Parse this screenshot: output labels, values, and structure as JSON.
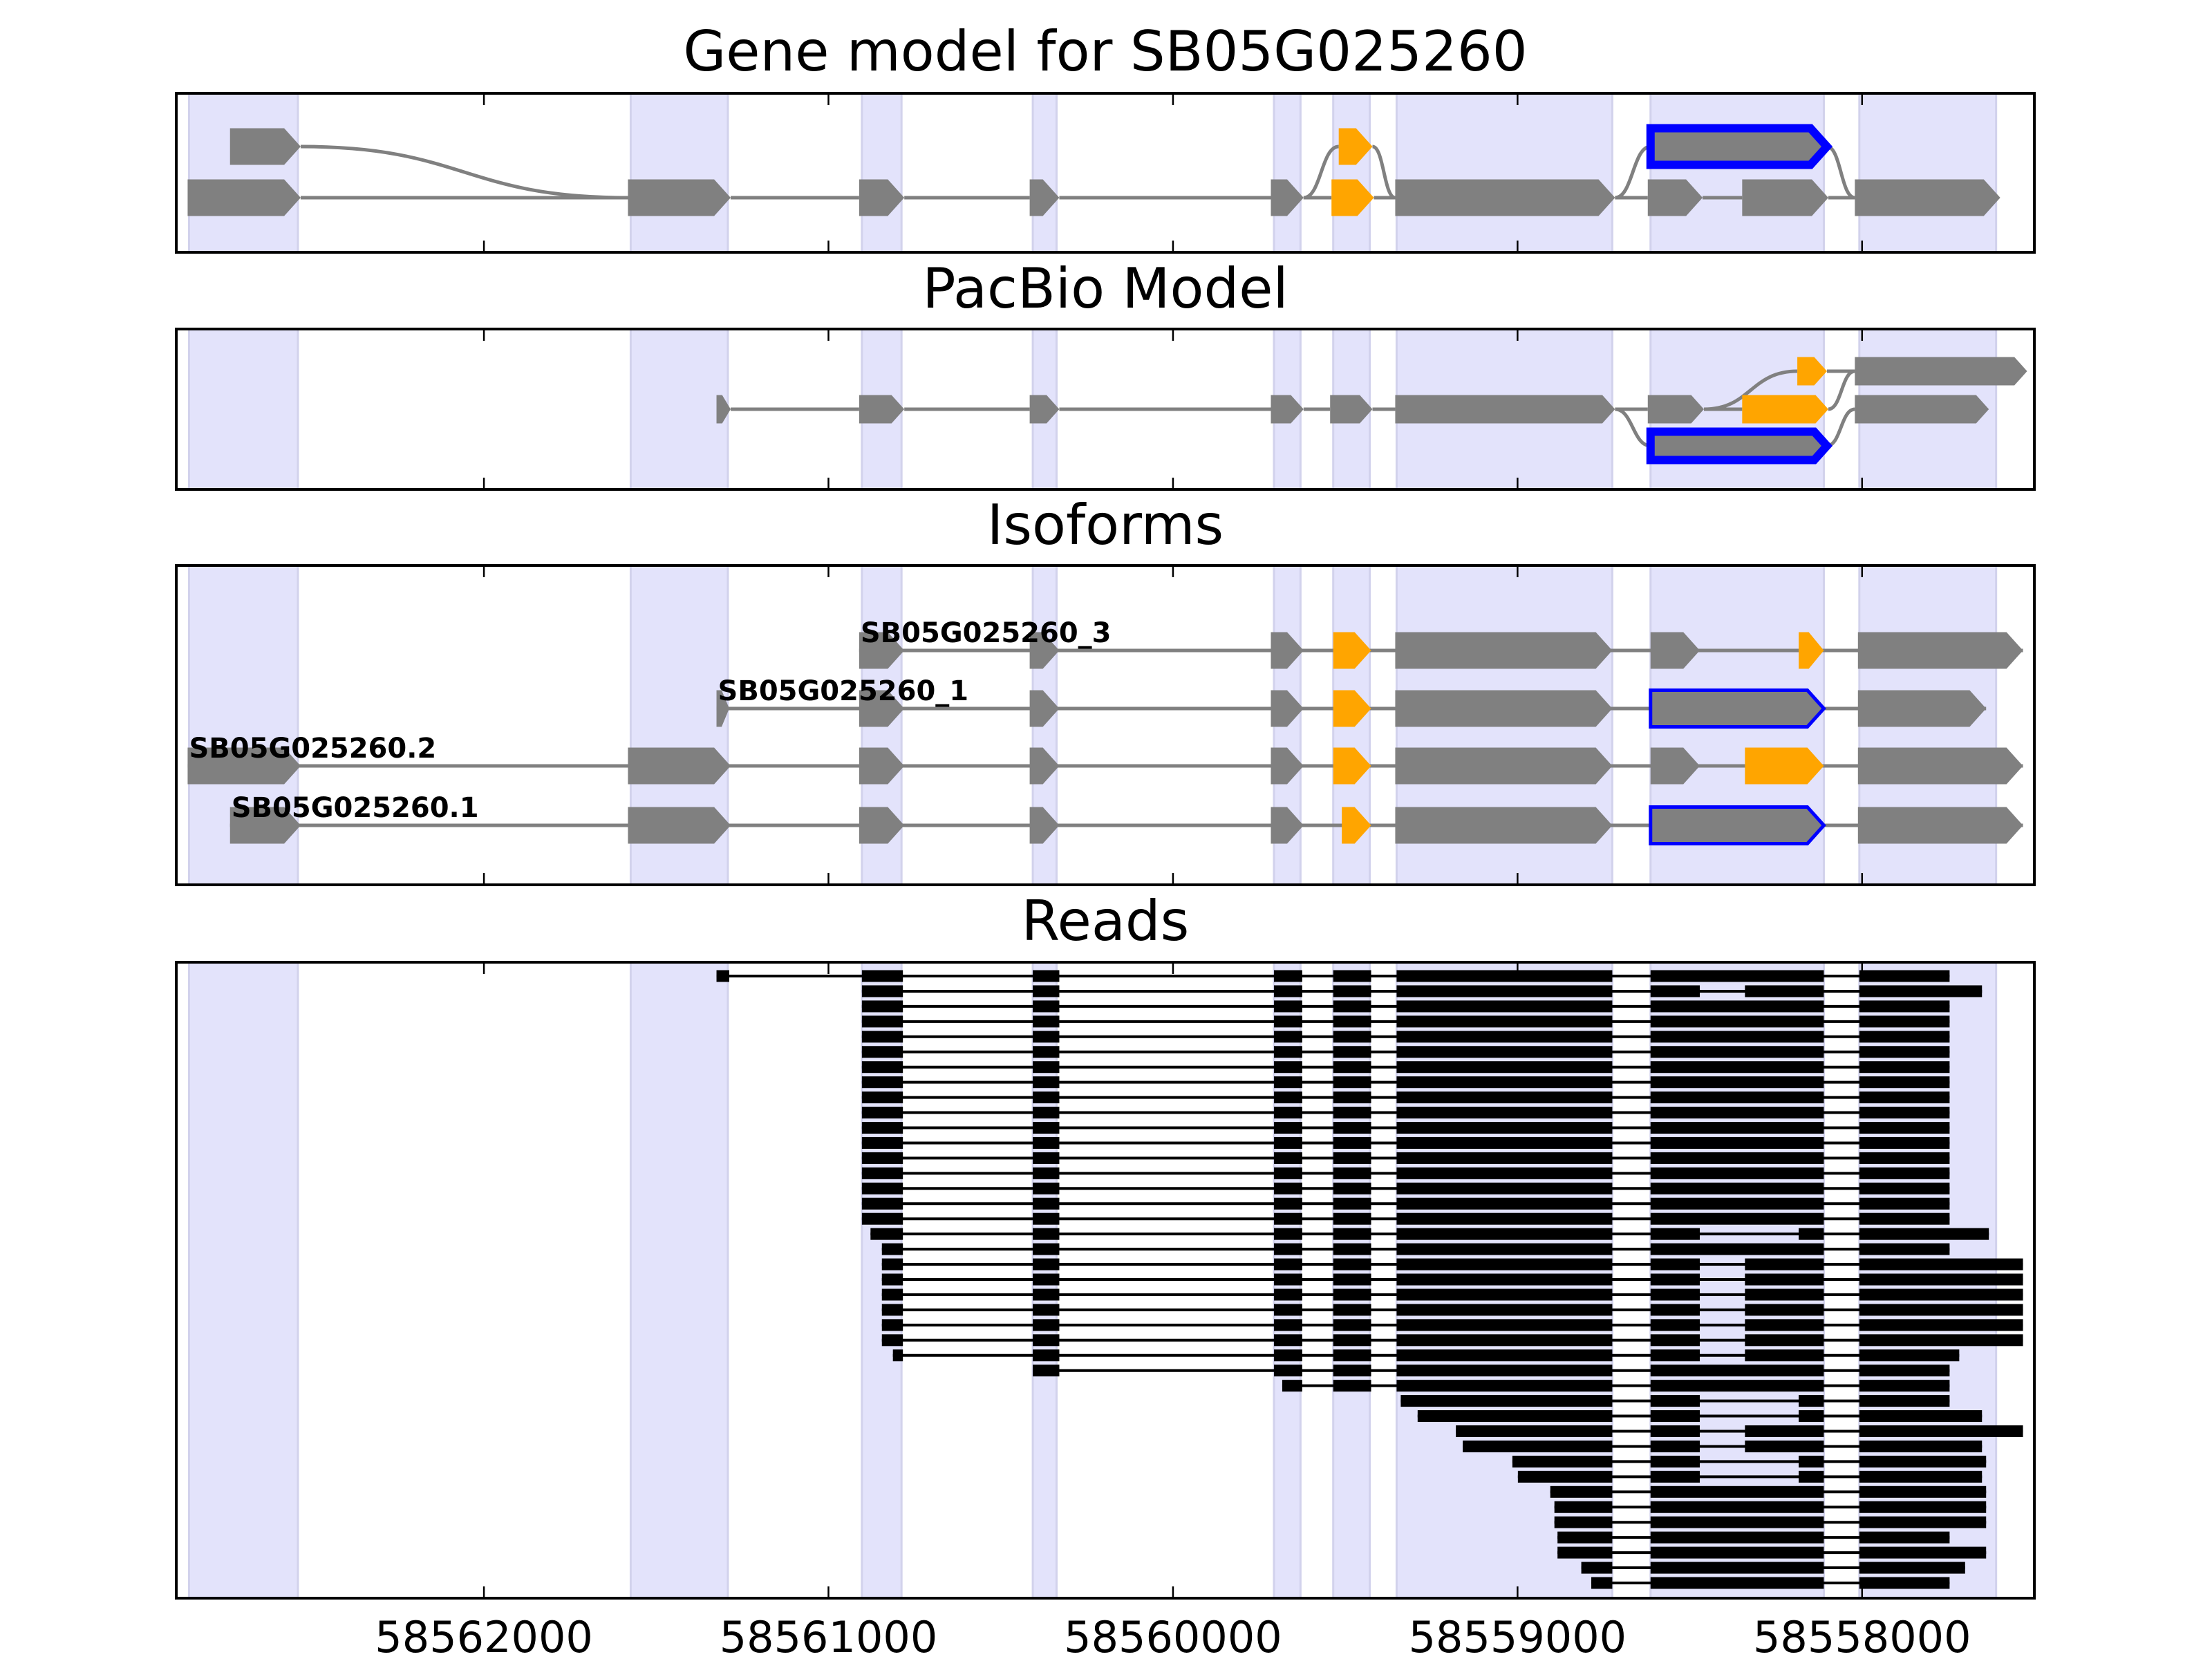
{
  "chart_data": {
    "type": "gene-structure",
    "xlim": [
      58562893,
      58557500
    ],
    "x_ticks": [
      58562000,
      58561000,
      58560000,
      58559000,
      58558000
    ],
    "x_tick_labels": [
      "58562000",
      "58561000",
      "58560000",
      "58559000",
      "58558000"
    ],
    "colors": {
      "g": "#808080",
      "o": "#ffa500",
      "b": "#808080",
      "outline": "#0000ff",
      "shade": "#e3e3fb",
      "read": "#000000",
      "intron": "#808080"
    },
    "shaded_regions": [
      [
        58562856,
        58562540
      ],
      [
        58561574,
        58561292
      ],
      [
        58560903,
        58560788
      ],
      [
        58560407,
        58560338
      ],
      [
        58559707,
        58559630
      ],
      [
        58559535,
        58559429
      ],
      [
        58559351,
        58558725
      ],
      [
        58558614,
        58558111
      ],
      [
        58558008,
        58557611
      ]
    ],
    "gene_model": {
      "title": "Gene model for SB05G025260",
      "rows": 2,
      "exons": [
        [
          58562737,
          58562532,
          "g",
          0
        ],
        [
          58562860,
          58562532,
          "g",
          1
        ],
        [
          58561582,
          58561284,
          "g",
          1
        ],
        [
          58560911,
          58560780,
          "g",
          1
        ],
        [
          58560416,
          58560330,
          "g",
          1
        ],
        [
          58559716,
          58559621,
          "g",
          1
        ],
        [
          58559519,
          58559421,
          "o",
          0
        ],
        [
          58559540,
          58559417,
          "o",
          1
        ],
        [
          58559355,
          58558717,
          "g",
          1
        ],
        [
          58558614,
          58558102,
          "b",
          0
        ],
        [
          58558622,
          58558463,
          "g",
          1
        ],
        [
          58558348,
          58558098,
          "g",
          1
        ],
        [
          58558021,
          58557599,
          "g",
          1
        ]
      ],
      "edges": [
        [
          0,
          2
        ],
        [
          1,
          2
        ],
        [
          2,
          3
        ],
        [
          3,
          4
        ],
        [
          4,
          5
        ],
        [
          5,
          6
        ],
        [
          5,
          7
        ],
        [
          6,
          8
        ],
        [
          7,
          8
        ],
        [
          8,
          9
        ],
        [
          8,
          10
        ],
        [
          10,
          11
        ],
        [
          9,
          12
        ],
        [
          11,
          12
        ]
      ]
    },
    "pacbio_model": {
      "title": "PacBio Model",
      "rows": 3,
      "exons": [
        [
          58561325,
          58561284,
          "g",
          1
        ],
        [
          58560911,
          58560780,
          "g",
          1
        ],
        [
          58560416,
          58560330,
          "g",
          1
        ],
        [
          58559716,
          58559621,
          "g",
          1
        ],
        [
          58559544,
          58559421,
          "g",
          1
        ],
        [
          58559355,
          58558717,
          "g",
          1
        ],
        [
          58558622,
          58558459,
          "g",
          1
        ],
        [
          58558614,
          58558102,
          "b",
          2
        ],
        [
          58558348,
          58558098,
          "o",
          1
        ],
        [
          58558188,
          58558102,
          "o",
          0
        ],
        [
          58558021,
          58557521,
          "g",
          0
        ],
        [
          58558021,
          58557632,
          "g",
          1
        ]
      ],
      "edges": [
        [
          0,
          1
        ],
        [
          1,
          2
        ],
        [
          2,
          3
        ],
        [
          3,
          4
        ],
        [
          4,
          5
        ],
        [
          5,
          6
        ],
        [
          5,
          7
        ],
        [
          6,
          8
        ],
        [
          6,
          9
        ],
        [
          9,
          10
        ],
        [
          8,
          10
        ],
        [
          7,
          11
        ]
      ]
    },
    "isoforms": {
      "title": "Isoforms",
      "transcripts": [
        {
          "label": "SB05G025260_3",
          "exons": [
            [
              58560911,
              58560780,
              "g"
            ],
            [
              58560416,
              58560330,
              "g"
            ],
            [
              58559716,
              58559621,
              "g"
            ],
            [
              58559535,
              58559425,
              "o"
            ],
            [
              58559355,
              58558725,
              "g"
            ],
            [
              58558614,
              58558471,
              "g"
            ],
            [
              58558184,
              58558111,
              "o"
            ],
            [
              58558012,
              58557533,
              "g"
            ]
          ]
        },
        {
          "label": "SB05G025260_1",
          "exons": [
            [
              58561325,
              58561288,
              "g"
            ],
            [
              58560911,
              58560780,
              "g"
            ],
            [
              58560416,
              58560330,
              "g"
            ],
            [
              58559716,
              58559621,
              "g"
            ],
            [
              58559535,
              58559425,
              "o"
            ],
            [
              58559355,
              58558725,
              "g"
            ],
            [
              58558614,
              58558111,
              "b"
            ],
            [
              58558012,
              58557640,
              "g"
            ]
          ]
        },
        {
          "label": "SB05G025260.2",
          "exons": [
            [
              58562860,
              58562532,
              "g"
            ],
            [
              58561582,
              58561284,
              "g"
            ],
            [
              58560911,
              58560780,
              "g"
            ],
            [
              58560416,
              58560330,
              "g"
            ],
            [
              58559716,
              58559621,
              "g"
            ],
            [
              58559535,
              58559425,
              "o"
            ],
            [
              58559355,
              58558725,
              "g"
            ],
            [
              58558614,
              58558471,
              "g"
            ],
            [
              58558340,
              58558111,
              "o"
            ],
            [
              58558012,
              58557533,
              "g"
            ]
          ]
        },
        {
          "label": "SB05G025260.1",
          "exons": [
            [
              58562737,
              58562532,
              "g"
            ],
            [
              58561582,
              58561284,
              "g"
            ],
            [
              58560911,
              58560780,
              "g"
            ],
            [
              58560416,
              58560330,
              "g"
            ],
            [
              58559716,
              58559621,
              "g"
            ],
            [
              58559510,
              58559425,
              "o"
            ],
            [
              58559355,
              58558725,
              "g"
            ],
            [
              58558614,
              58558111,
              "b"
            ],
            [
              58558012,
              58557533,
              "g"
            ]
          ]
        }
      ]
    },
    "reads": {
      "title": "Reads",
      "exon_blocks": {
        "E0": [
          58561325,
          58561288
        ],
        "E1": [
          58560903,
          58560784
        ],
        "E2": [
          58560407,
          58560330
        ],
        "E3": [
          58559707,
          58559625
        ],
        "E4": [
          58559535,
          58559425
        ],
        "E5": [
          58559351,
          58558725
        ],
        "E6": [
          58558614,
          58558111
        ],
        "E6a": [
          58558614,
          58558471
        ],
        "E6b": [
          58558340,
          58558111
        ],
        "E6c": [
          58558184,
          58558111
        ],
        "E7": [
          58558008,
          58557746
        ]
      },
      "items": [
        {
          "start": 58561325,
          "end": 58557746,
          "blocks": [
            "E0",
            "E1",
            "E2",
            "E3",
            "E4",
            "E5",
            "E6",
            "E7"
          ]
        },
        {
          "start": 58560903,
          "end": 58557652,
          "blocks": [
            "E1",
            "E2",
            "E3",
            "E4",
            "E5",
            "E6a",
            "E6b",
            "E7"
          ]
        },
        {
          "start": 58560903,
          "end": 58557746,
          "blocks": [
            "E1",
            "E2",
            "E3",
            "E4",
            "E5",
            "E6",
            "E7"
          ]
        },
        {
          "start": 58560903,
          "end": 58557746,
          "blocks": [
            "E1",
            "E2",
            "E3",
            "E4",
            "E5",
            "E6",
            "E7"
          ]
        },
        {
          "start": 58560903,
          "end": 58557746,
          "blocks": [
            "E1",
            "E2",
            "E3",
            "E4",
            "E5",
            "E6",
            "E7"
          ]
        },
        {
          "start": 58560903,
          "end": 58557746,
          "blocks": [
            "E1",
            "E2",
            "E3",
            "E4",
            "E5",
            "E6",
            "E7"
          ]
        },
        {
          "start": 58560903,
          "end": 58557746,
          "blocks": [
            "E1",
            "E2",
            "E3",
            "E4",
            "E5",
            "E6",
            "E7"
          ]
        },
        {
          "start": 58560903,
          "end": 58557746,
          "blocks": [
            "E1",
            "E2",
            "E3",
            "E4",
            "E5",
            "E6",
            "E7"
          ]
        },
        {
          "start": 58560903,
          "end": 58557746,
          "blocks": [
            "E1",
            "E2",
            "E3",
            "E4",
            "E5",
            "E6",
            "E7"
          ]
        },
        {
          "start": 58560903,
          "end": 58557746,
          "blocks": [
            "E1",
            "E2",
            "E3",
            "E4",
            "E5",
            "E6",
            "E7"
          ]
        },
        {
          "start": 58560903,
          "end": 58557746,
          "blocks": [
            "E1",
            "E2",
            "E3",
            "E4",
            "E5",
            "E6",
            "E7"
          ]
        },
        {
          "start": 58560903,
          "end": 58557746,
          "blocks": [
            "E1",
            "E2",
            "E3",
            "E4",
            "E5",
            "E6",
            "E7"
          ]
        },
        {
          "start": 58560903,
          "end": 58557746,
          "blocks": [
            "E1",
            "E2",
            "E3",
            "E4",
            "E5",
            "E6",
            "E7"
          ]
        },
        {
          "start": 58560903,
          "end": 58557746,
          "blocks": [
            "E1",
            "E2",
            "E3",
            "E4",
            "E5",
            "E6",
            "E7"
          ]
        },
        {
          "start": 58560903,
          "end": 58557746,
          "blocks": [
            "E1",
            "E2",
            "E3",
            "E4",
            "E5",
            "E6",
            "E7"
          ]
        },
        {
          "start": 58560903,
          "end": 58557746,
          "blocks": [
            "E1",
            "E2",
            "E3",
            "E4",
            "E5",
            "E6",
            "E7"
          ]
        },
        {
          "start": 58560903,
          "end": 58557746,
          "blocks": [
            "E1",
            "E2",
            "E3",
            "E4",
            "E5",
            "E6",
            "E7"
          ]
        },
        {
          "start": 58560878,
          "end": 58557632,
          "blocks": [
            "E1",
            "E2",
            "E3",
            "E4",
            "E5",
            "E6a",
            "E6c",
            "E7"
          ]
        },
        {
          "start": 58560845,
          "end": 58557746,
          "blocks": [
            "E1",
            "E2",
            "E3",
            "E4",
            "E5",
            "E6",
            "E7"
          ]
        },
        {
          "start": 58560845,
          "end": 58557533,
          "blocks": [
            "E1",
            "E2",
            "E3",
            "E4",
            "E5",
            "E6a",
            "E6b",
            "E7"
          ]
        },
        {
          "start": 58560845,
          "end": 58557533,
          "blocks": [
            "E1",
            "E2",
            "E3",
            "E4",
            "E5",
            "E6a",
            "E6b",
            "E7"
          ]
        },
        {
          "start": 58560845,
          "end": 58557533,
          "blocks": [
            "E1",
            "E2",
            "E3",
            "E4",
            "E5",
            "E6a",
            "E6b",
            "E7"
          ]
        },
        {
          "start": 58560845,
          "end": 58557533,
          "blocks": [
            "E1",
            "E2",
            "E3",
            "E4",
            "E5",
            "E6a",
            "E6b",
            "E7"
          ]
        },
        {
          "start": 58560845,
          "end": 58557533,
          "blocks": [
            "E1",
            "E2",
            "E3",
            "E4",
            "E5",
            "E6a",
            "E6b",
            "E7"
          ]
        },
        {
          "start": 58560845,
          "end": 58557533,
          "blocks": [
            "E1",
            "E2",
            "E3",
            "E4",
            "E5",
            "E6a",
            "E6b",
            "E7"
          ]
        },
        {
          "start": 58560813,
          "end": 58557718,
          "blocks": [
            "E1",
            "E2",
            "E3",
            "E4",
            "E5",
            "E6a",
            "E6b",
            "E7"
          ]
        },
        {
          "start": 58560407,
          "end": 58557746,
          "blocks": [
            "E2",
            "E3",
            "E4",
            "E5",
            "E6",
            "E7"
          ]
        },
        {
          "start": 58559683,
          "end": 58557746,
          "blocks": [
            "E3",
            "E4",
            "E5",
            "E6",
            "E7"
          ]
        },
        {
          "start": 58559339,
          "end": 58557746,
          "blocks": [
            "E5",
            "E6a",
            "E6c",
            "E7"
          ]
        },
        {
          "start": 58559290,
          "end": 58557652,
          "blocks": [
            "E5",
            "E6a",
            "E6c",
            "E7"
          ]
        },
        {
          "start": 58559179,
          "end": 58557533,
          "blocks": [
            "E5",
            "E6a",
            "E6b",
            "E7"
          ]
        },
        {
          "start": 58559159,
          "end": 58557652,
          "blocks": [
            "E5",
            "E6a",
            "E6b",
            "E7"
          ]
        },
        {
          "start": 58559015,
          "end": 58557640,
          "blocks": [
            "E5",
            "E6a",
            "E6c",
            "E7"
          ]
        },
        {
          "start": 58558999,
          "end": 58557652,
          "blocks": [
            "E5",
            "E6a",
            "E6c",
            "E7"
          ]
        },
        {
          "start": 58558905,
          "end": 58557640,
          "blocks": [
            "E5",
            "E6",
            "E7"
          ]
        },
        {
          "start": 58558893,
          "end": 58557640,
          "blocks": [
            "E5",
            "E6",
            "E7"
          ]
        },
        {
          "start": 58558893,
          "end": 58557640,
          "blocks": [
            "E5",
            "E6",
            "E7"
          ]
        },
        {
          "start": 58558884,
          "end": 58557746,
          "blocks": [
            "E5",
            "E6",
            "E7"
          ]
        },
        {
          "start": 58558884,
          "end": 58557640,
          "blocks": [
            "E5",
            "E6",
            "E7"
          ]
        },
        {
          "start": 58558815,
          "end": 58557701,
          "blocks": [
            "E5",
            "E6",
            "E7"
          ]
        },
        {
          "start": 58558786,
          "end": 58557746,
          "blocks": [
            "E5",
            "E6",
            "E7"
          ]
        }
      ]
    }
  }
}
